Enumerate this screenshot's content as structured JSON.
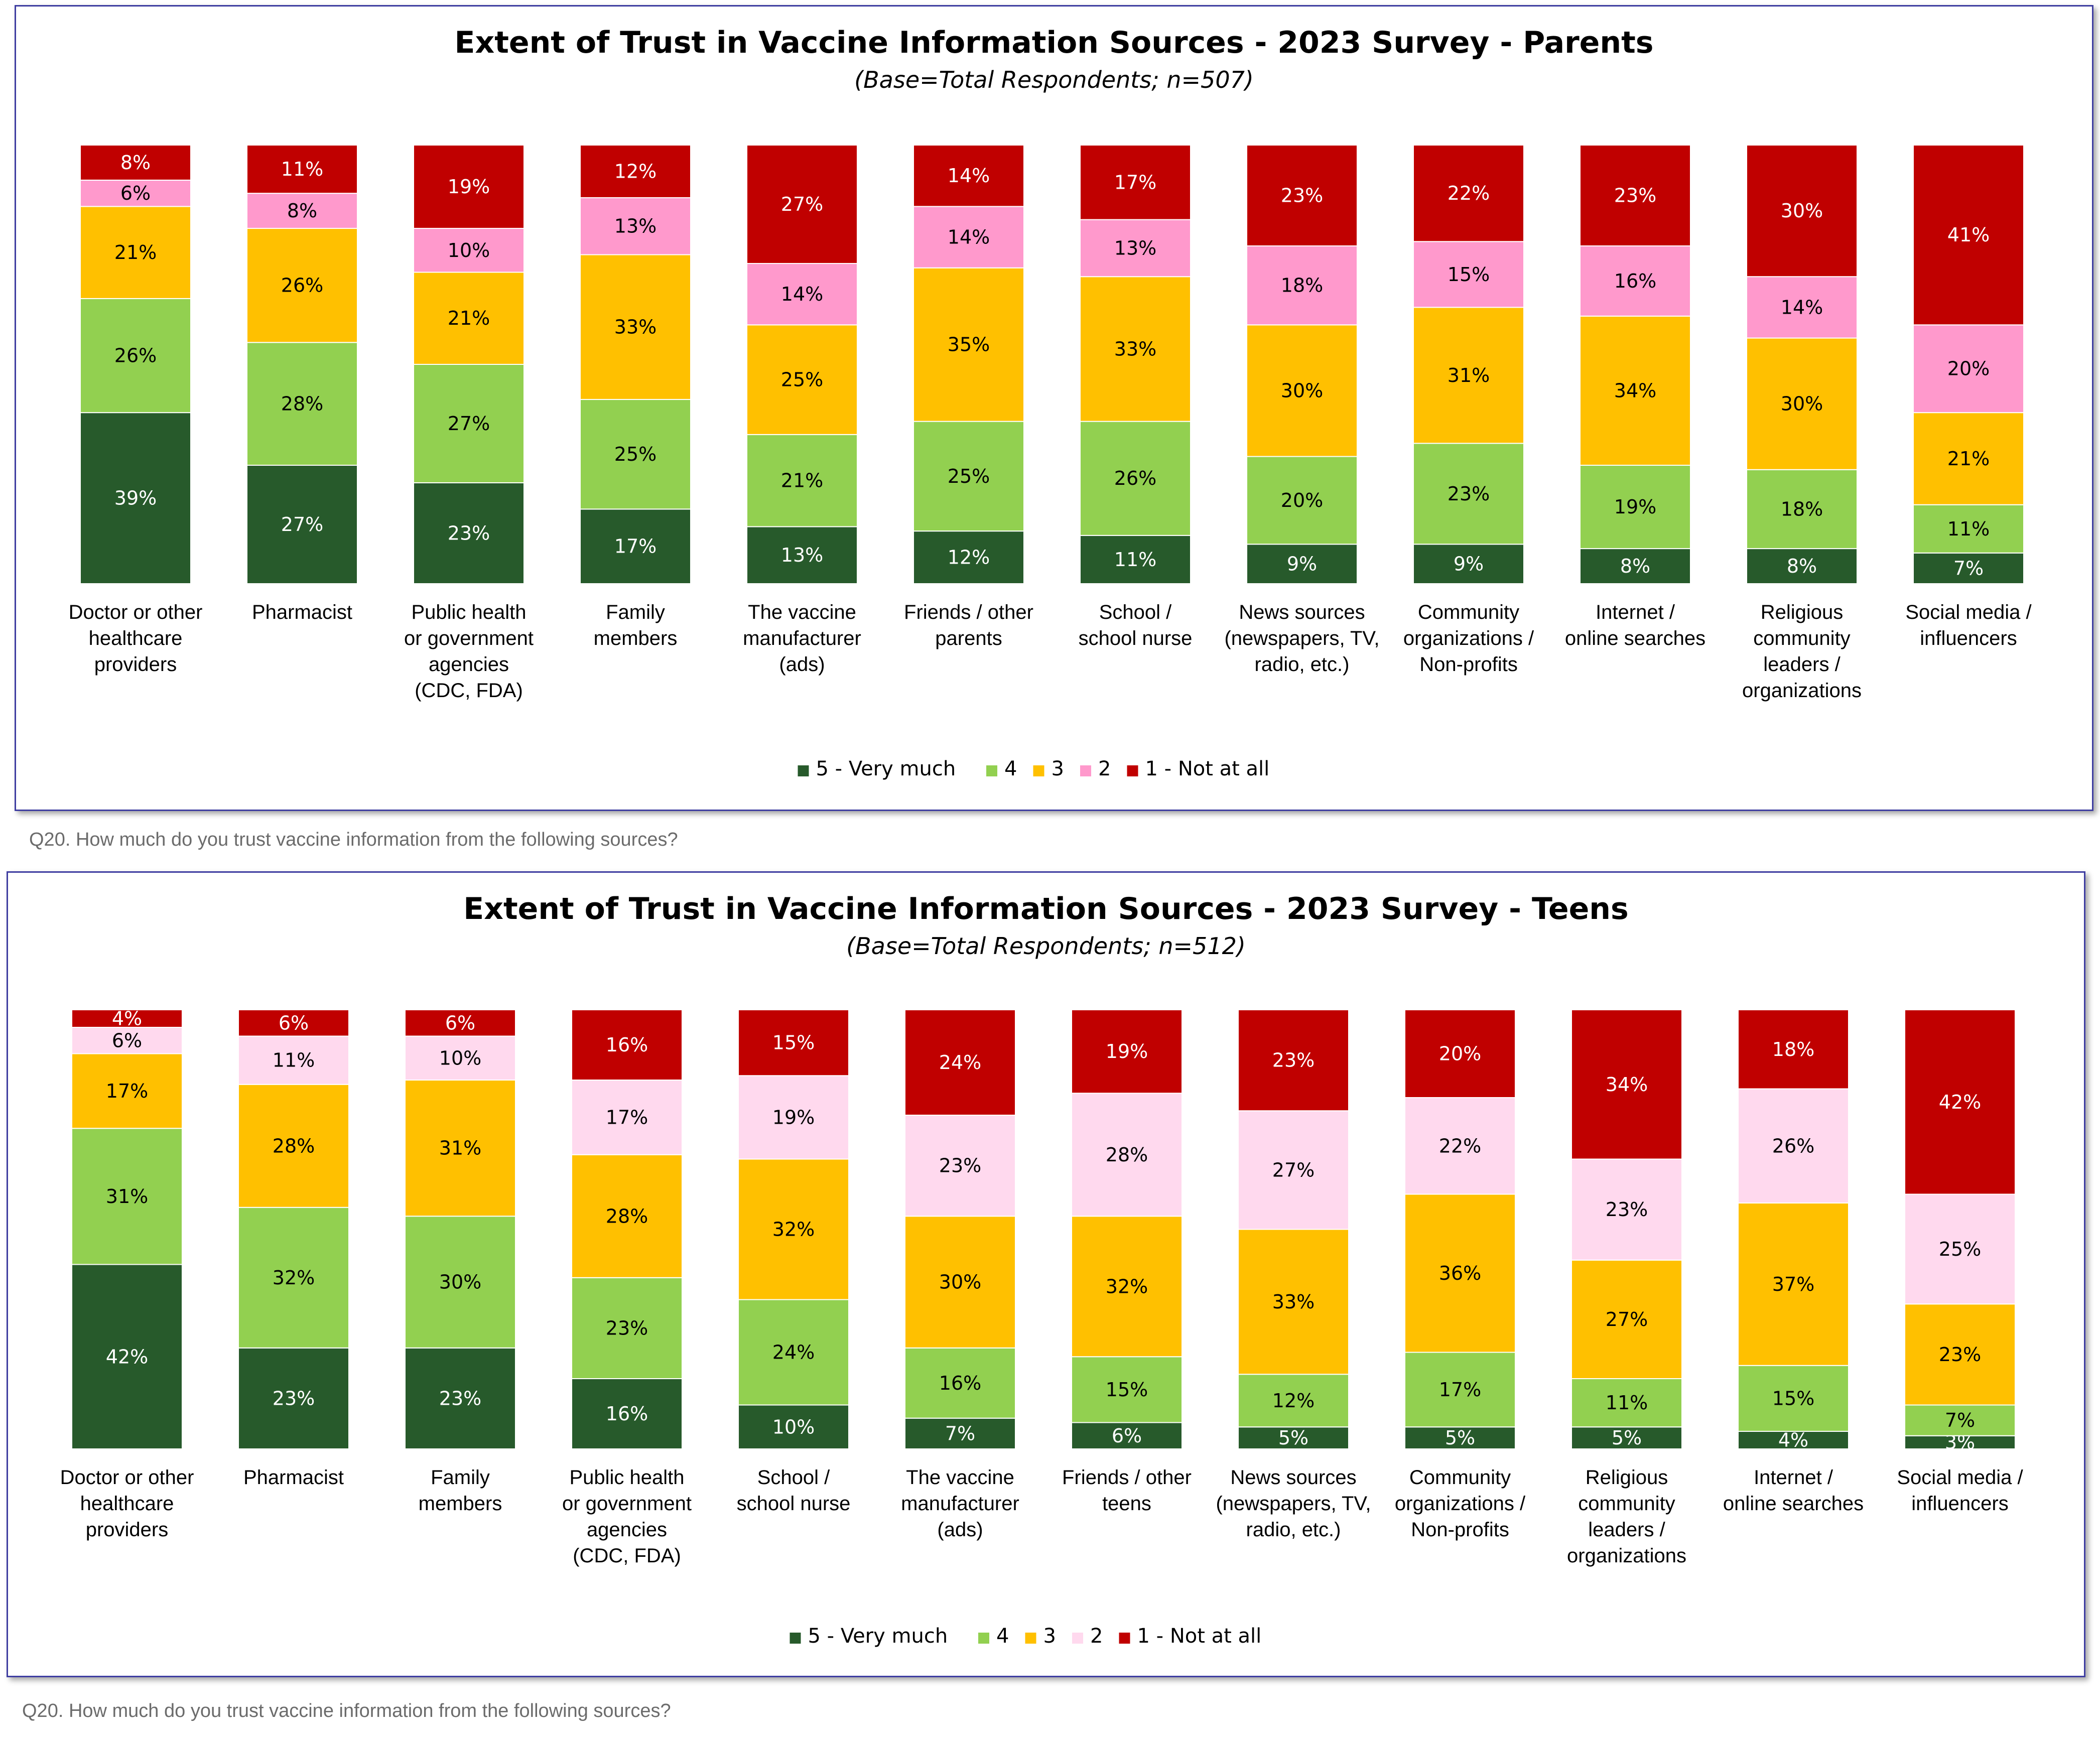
{
  "chart_data": [
    {
      "type": "bar",
      "stacked": true,
      "title": "Extent of Trust in Vaccine Information Sources - 2023 Survey - Parents",
      "subtitle": "(Base=Total Respondents; n=507)",
      "categories": [
        "Doctor or other|healthcare|providers",
        "Pharmacist",
        "Public health|or government|agencies|(CDC, FDA)",
        "Family|members",
        "The vaccine|manufacturer|(ads)",
        "Friends / other|parents",
        "School /|school nurse",
        "News sources|(newspapers, TV,|radio, etc.)",
        "Community|organizations /|Non-profits",
        "Internet /|online searches",
        "Religious|community|leaders /|organizations",
        "Social media /|influencers"
      ],
      "series": [
        {
          "name": "5 - Very much",
          "color": "#275a2b",
          "values": [
            39,
            27,
            23,
            17,
            13,
            12,
            11,
            9,
            9,
            8,
            8,
            7
          ]
        },
        {
          "name": "4",
          "color": "#92d050",
          "values": [
            26,
            28,
            27,
            25,
            21,
            25,
            26,
            20,
            23,
            19,
            18,
            11
          ]
        },
        {
          "name": "3",
          "color": "#ffc000",
          "values": [
            21,
            26,
            21,
            33,
            25,
            35,
            33,
            30,
            31,
            34,
            30,
            21
          ]
        },
        {
          "name": "2",
          "color": "#ff99cc",
          "values": [
            6,
            8,
            10,
            13,
            14,
            14,
            13,
            18,
            15,
            16,
            14,
            20
          ]
        },
        {
          "name": "1 - Not at all",
          "color": "#c00000",
          "values": [
            8,
            11,
            19,
            12,
            27,
            14,
            17,
            23,
            22,
            23,
            30,
            41
          ]
        }
      ],
      "value_suffix": "%",
      "legend_position": "bottom",
      "grid": false
    },
    {
      "type": "bar",
      "stacked": true,
      "title": "Extent of Trust in Vaccine Information Sources - 2023 Survey - Teens",
      "subtitle": "(Base=Total Respondents; n=512)",
      "categories": [
        "Doctor or other|healthcare|providers",
        "Pharmacist",
        "Family|members",
        "Public health|or government|agencies|(CDC, FDA)",
        "School /|school nurse",
        "The vaccine|manufacturer|(ads)",
        "Friends / other|teens",
        "News sources|(newspapers, TV,|radio, etc.)",
        "Community|organizations /|Non-profits",
        "Religious|community|leaders /|organizations",
        "Internet /|online searches",
        "Social media /|influencers"
      ],
      "series": [
        {
          "name": "5 - Very much",
          "color": "#275a2b",
          "values": [
            42,
            23,
            23,
            16,
            10,
            7,
            6,
            5,
            5,
            5,
            4,
            3
          ]
        },
        {
          "name": "4",
          "color": "#92d050",
          "values": [
            31,
            32,
            30,
            23,
            24,
            16,
            15,
            12,
            17,
            11,
            15,
            7
          ]
        },
        {
          "name": "3",
          "color": "#ffc000",
          "values": [
            17,
            28,
            31,
            28,
            32,
            30,
            32,
            33,
            36,
            27,
            37,
            23
          ]
        },
        {
          "name": "2",
          "color": "#ffd9ee",
          "values": [
            6,
            11,
            10,
            17,
            19,
            23,
            28,
            27,
            22,
            23,
            26,
            25
          ]
        },
        {
          "name": "1 - Not at all",
          "color": "#c00000",
          "values": [
            4,
            6,
            6,
            16,
            15,
            24,
            19,
            23,
            20,
            34,
            18,
            42
          ]
        }
      ],
      "value_suffix": "%",
      "legend_position": "bottom",
      "grid": false
    }
  ],
  "footnotes": [
    "Q20. How much do you trust vaccine information from the following sources?",
    "Q20. How much do you trust vaccine information from the following sources?"
  ]
}
